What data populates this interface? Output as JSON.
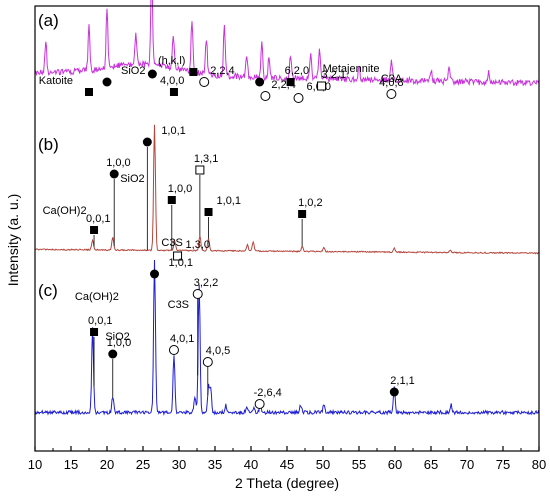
{
  "chart_data": {
    "type": "line",
    "xlabel": "2 Theta (degree)",
    "ylabel": "Intensity (a. u.)",
    "xlim": [
      10,
      80
    ],
    "xticks": [
      "10",
      "15",
      "20",
      "25",
      "30",
      "35",
      "40",
      "45",
      "50",
      "55",
      "60",
      "65",
      "70",
      "75",
      "80"
    ],
    "colors": {
      "a": "#c832dc",
      "b": "#b4463c",
      "c": "#1e1ed2",
      "axis": "#000000"
    },
    "symbols": {
      "square": "filled-square-icon",
      "circle": "filled-circle-icon",
      "open_circle": "open-circle-icon",
      "open_square": "open-square-icon"
    },
    "series": [
      {
        "panel": "(a)",
        "baseline": 0.35,
        "slope": -0.12,
        "peaks": [
          [
            11.5,
            0.35
          ],
          [
            17.5,
            0.5
          ],
          [
            20,
            0.65
          ],
          [
            24,
            0.35
          ],
          [
            26.2,
            1.0
          ],
          [
            29.2,
            0.38
          ],
          [
            31.8,
            0.55
          ],
          [
            33.8,
            0.4
          ],
          [
            36.3,
            0.55
          ],
          [
            39.4,
            0.25
          ],
          [
            41.5,
            0.4
          ],
          [
            42.5,
            0.22
          ],
          [
            45.5,
            0.25
          ],
          [
            48.3,
            0.25
          ],
          [
            49.5,
            0.32
          ],
          [
            55,
            0.15
          ],
          [
            59.5,
            0.2
          ],
          [
            65,
            0.12
          ],
          [
            67.5,
            0.15
          ],
          [
            73,
            0.12
          ]
        ],
        "labels": [
          {
            "text": "Katoite",
            "symbol": "square",
            "x": 17.5
          },
          {
            "text": "SiO2",
            "symbol": "circle",
            "x": 20
          },
          {
            "text": "",
            "symbol": "circle",
            "x": 26.3
          },
          {
            "text": "(h,k,l)",
            "symbol": "",
            "x": 29.3
          },
          {
            "text": "4,0,0",
            "symbol": "square",
            "x": 29.3
          },
          {
            "text": "",
            "symbol": "square",
            "x": 32.0
          },
          {
            "text": "2,2,4",
            "symbol": "open_circle",
            "x": 33.5
          },
          {
            "text": "",
            "symbol": "circle",
            "x": 41.2
          },
          {
            "text": "2,2,4",
            "symbol": "open_circle",
            "x": 42.0
          },
          {
            "text": "6,2,0",
            "symbol": "square",
            "x": 45.5
          },
          {
            "text": "6,0,0",
            "symbol": "open_circle",
            "x": 46.6
          },
          {
            "text": "Metajennite",
            "symbol": "",
            "x": 50.5
          },
          {
            "text": "3,2,1",
            "symbol": "open_square",
            "x": 49.8
          },
          {
            "text": "C3A",
            "symbol": "",
            "x": 59.5
          },
          {
            "text": "4,0,8",
            "symbol": "open_circle",
            "x": 59.5
          }
        ]
      },
      {
        "panel": "(b)",
        "baseline": 0.1,
        "slope": -0.03,
        "peaks": [
          [
            18,
            0.08
          ],
          [
            20.8,
            0.1
          ],
          [
            26.6,
            1.0
          ],
          [
            29.4,
            0.08
          ],
          [
            32.9,
            0.12
          ],
          [
            34.1,
            0.1
          ],
          [
            39.5,
            0.05
          ],
          [
            40.3,
            0.07
          ],
          [
            47.1,
            0.04
          ],
          [
            50.1,
            0.03
          ],
          [
            59.9,
            0.03
          ],
          [
            67.7,
            0.02
          ]
        ],
        "labels": [
          {
            "text": "1,0,1",
            "symbol": "circle",
            "x": 25.6
          },
          {
            "text": "1,0,0",
            "symbol": "circle",
            "x": 21.0
          },
          {
            "text": "SiO2",
            "symbol": "",
            "x": 21.0
          },
          {
            "text": "1,0,0",
            "symbol": "square",
            "x": 29.0
          },
          {
            "text": "1,3,1",
            "symbol": "open_square",
            "x": 32.9
          },
          {
            "text": "1,0,1",
            "symbol": "square",
            "x": 34.1
          },
          {
            "text": "C3S",
            "symbol": "",
            "x": 29.5
          },
          {
            "text": "1,3,0",
            "symbol": "open_square",
            "x": 29.8
          },
          {
            "text": "Ca(OH)2",
            "symbol": "",
            "x": 18
          },
          {
            "text": "0,0,1",
            "symbol": "square",
            "x": 18.2
          },
          {
            "text": "1,0,2",
            "symbol": "square",
            "x": 47.1
          }
        ]
      },
      {
        "panel": "(c)",
        "baseline": 0.05,
        "slope": 0.0,
        "peaks": [
          [
            18,
            0.55
          ],
          [
            20.8,
            0.1
          ],
          [
            26.6,
            1.0
          ],
          [
            29.3,
            0.37
          ],
          [
            32.2,
            0.1
          ],
          [
            32.8,
            0.85
          ],
          [
            34.1,
            0.17
          ],
          [
            34.4,
            0.15
          ],
          [
            36.5,
            0.05
          ],
          [
            39.4,
            0.04
          ],
          [
            40.4,
            0.03
          ],
          [
            41.3,
            0.05
          ],
          [
            46.9,
            0.05
          ],
          [
            50.1,
            0.05
          ],
          [
            59.9,
            0.17
          ],
          [
            67.8,
            0.05
          ]
        ],
        "labels": [
          {
            "text": "1,0,1",
            "symbol": "circle",
            "x": 26.6
          },
          {
            "text": "3,2,2",
            "symbol": "open_circle",
            "x": 32.6
          },
          {
            "text": "Ca(OH)2",
            "symbol": "",
            "x": 18.6
          },
          {
            "text": "0,0,1",
            "symbol": "square",
            "x": 18.2
          },
          {
            "text": "C3S",
            "symbol": "",
            "x": 28.7
          },
          {
            "text": "4,0,1",
            "symbol": "open_circle",
            "x": 29.3
          },
          {
            "text": "4,0,5",
            "symbol": "open_circle",
            "x": 34.0
          },
          {
            "text": "SiO2",
            "symbol": "",
            "x": 20.6
          },
          {
            "text": "1,0,0",
            "symbol": "circle",
            "x": 20.8
          },
          {
            "text": "-2,6,4",
            "symbol": "open_circle",
            "x": 41.2
          },
          {
            "text": "2,1,1",
            "symbol": "circle",
            "x": 59.9
          }
        ]
      }
    ]
  }
}
